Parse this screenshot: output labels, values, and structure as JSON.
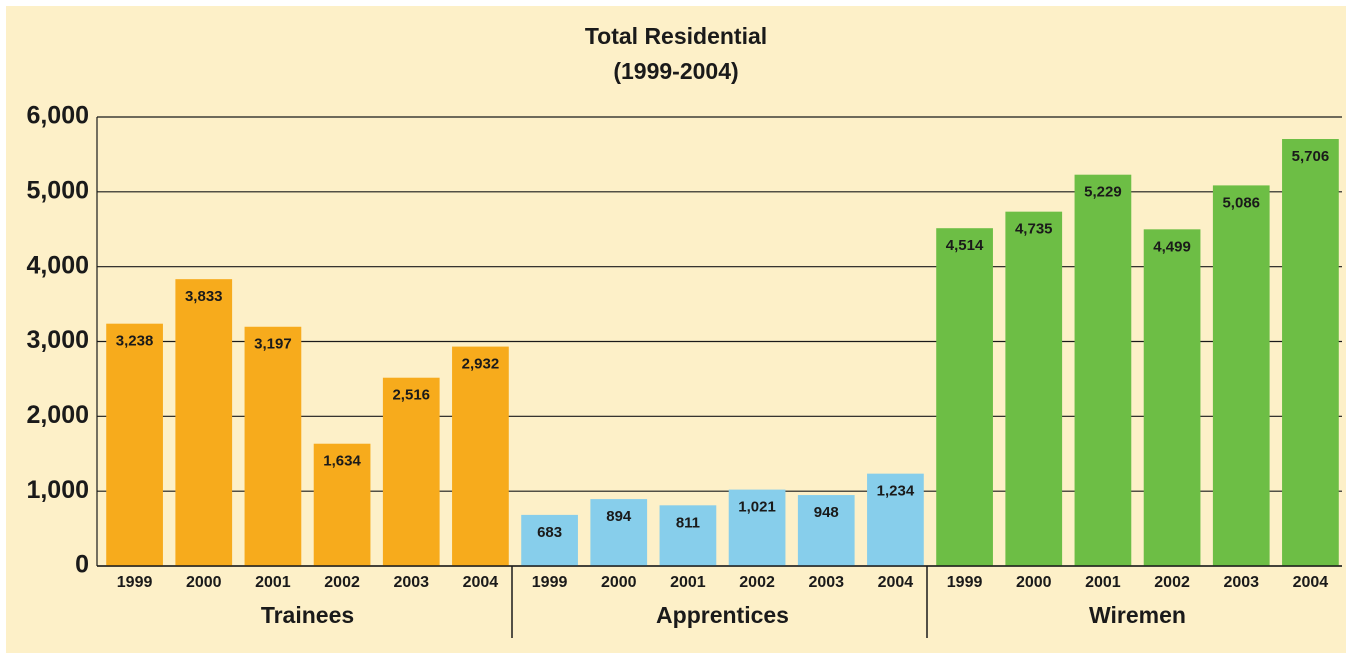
{
  "chart_data": {
    "type": "bar",
    "title": "Total Residential",
    "subtitle": "(1999-2004)",
    "categories": [
      "1999",
      "2000",
      "2001",
      "2002",
      "2003",
      "2004"
    ],
    "series": [
      {
        "name": "Trainees",
        "color": "#f7ab1c",
        "values": [
          3238,
          3833,
          3197,
          1634,
          2516,
          2932
        ],
        "value_labels": [
          "3,238",
          "3,833",
          "3,197",
          "1,634",
          "2,516",
          "2,932"
        ]
      },
      {
        "name": "Apprentices",
        "color": "#87ceeb",
        "values": [
          683,
          894,
          811,
          1021,
          948,
          1234
        ],
        "value_labels": [
          "683",
          "894",
          "811",
          "1,021",
          "948",
          "1,234"
        ]
      },
      {
        "name": "Wiremen",
        "color": "#6dbe45",
        "values": [
          4514,
          4735,
          5229,
          4499,
          5086,
          5706
        ],
        "value_labels": [
          "4,514",
          "4,735",
          "5,229",
          "4,499",
          "5,086",
          "5,706"
        ]
      }
    ],
    "ylim": [
      0,
      6000
    ],
    "yticks": [
      0,
      {
        "value": 1000,
        "label": "1,000"
      },
      {
        "value": 2000,
        "label": "2,000"
      },
      {
        "value": 3000,
        "label": "3,000"
      },
      {
        "value": 4000,
        "label": "4,000"
      },
      {
        "value": 5000,
        "label": "5,000"
      },
      {
        "value": 6000,
        "label": "6,000"
      }
    ],
    "grid": true
  }
}
